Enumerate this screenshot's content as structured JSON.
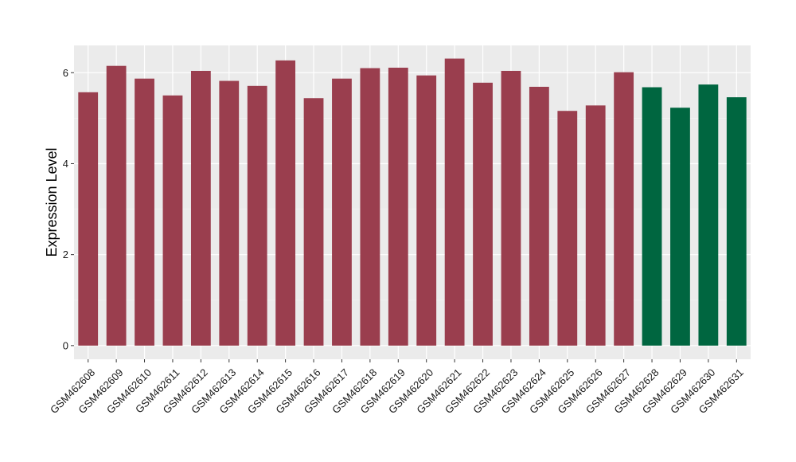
{
  "chart_data": {
    "type": "bar",
    "title": "",
    "xlabel": "",
    "ylabel": "Expression Level",
    "ylim": [
      -0.3,
      6.6
    ],
    "yticks": [
      0,
      2,
      4,
      6
    ],
    "grid": true,
    "background": "#ebebeb",
    "colors": {
      "group_a": "#9a3e4e",
      "group_b": "#006640",
      "grid_major": "#ffffff",
      "grid_minor": "#f5f5f5"
    },
    "categories": [
      "GSM462608",
      "GSM462609",
      "GSM462610",
      "GSM462611",
      "GSM462612",
      "GSM462613",
      "GSM462614",
      "GSM462615",
      "GSM462616",
      "GSM462617",
      "GSM462618",
      "GSM462619",
      "GSM462620",
      "GSM462621",
      "GSM462622",
      "GSM462623",
      "GSM462624",
      "GSM462625",
      "GSM462626",
      "GSM462627",
      "GSM462628",
      "GSM462629",
      "GSM462630",
      "GSM462631"
    ],
    "values": [
      5.57,
      6.15,
      5.87,
      5.5,
      6.04,
      5.82,
      5.71,
      6.27,
      5.44,
      5.87,
      6.1,
      6.11,
      5.94,
      6.31,
      5.78,
      6.04,
      5.69,
      5.16,
      5.28,
      6.01,
      5.68,
      5.23,
      5.74,
      5.46
    ],
    "groups": [
      "a",
      "a",
      "a",
      "a",
      "a",
      "a",
      "a",
      "a",
      "a",
      "a",
      "a",
      "a",
      "a",
      "a",
      "a",
      "a",
      "a",
      "a",
      "a",
      "a",
      "b",
      "b",
      "b",
      "b"
    ]
  }
}
